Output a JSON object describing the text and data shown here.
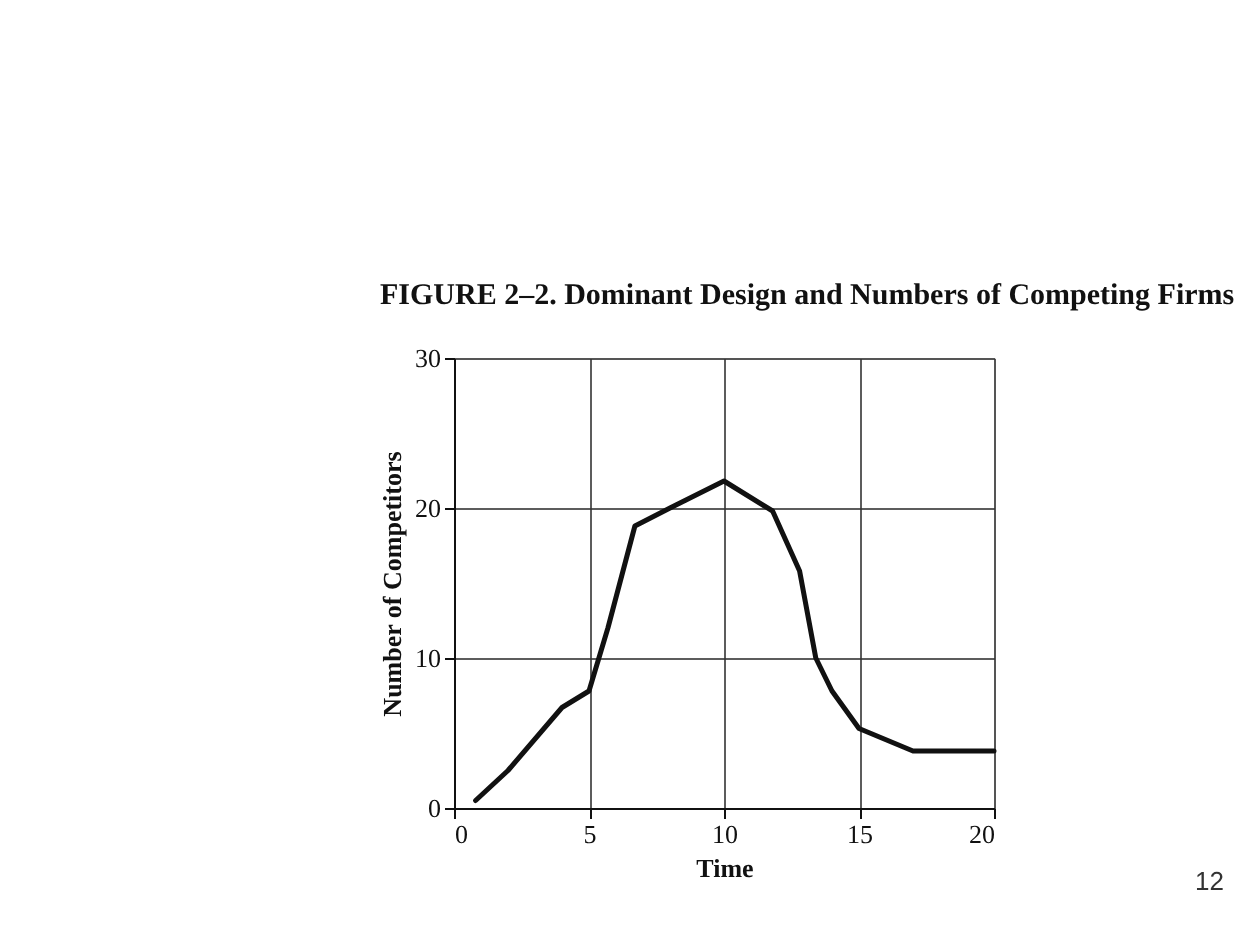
{
  "chart_data": {
    "type": "line",
    "title": "FIGURE 2–2.  Dominant Design and Numbers of Competing Firms",
    "xlabel": "Time",
    "ylabel": "Number of Competitors",
    "x": [
      0.8,
      2,
      4,
      5,
      5.7,
      6.7,
      8,
      10,
      11.8,
      12.8,
      13.4,
      14,
      15,
      17,
      20
    ],
    "series": [
      {
        "color": "#111111",
        "values": [
          0.5,
          2.5,
          6.7,
          7.8,
          12,
          18.8,
          20,
          21.8,
          19.8,
          15.8,
          10,
          7.8,
          5.3,
          3.8,
          3.8
        ]
      }
    ],
    "xlim": [
      0,
      20
    ],
    "ylim": [
      0,
      30
    ],
    "xticks": [
      0,
      5,
      10,
      15,
      20
    ],
    "yticks": [
      0,
      10,
      20,
      30
    ],
    "grid": true,
    "marker": "none",
    "line_style": "solid",
    "annotations": [
      "12"
    ]
  }
}
